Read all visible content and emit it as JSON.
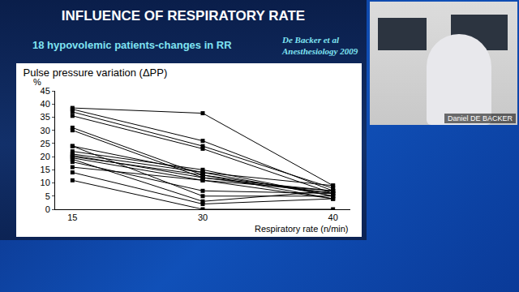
{
  "slide": {
    "title": "INFLUENCE OF RESPIRATORY RATE",
    "subtitle": "18 hypovolemic patients-changes in RR",
    "reference": [
      "De Backer et al",
      "Anesthesiology 2009"
    ]
  },
  "video": {
    "name": "Daniel DE BACKER"
  },
  "chart_data": {
    "type": "line",
    "title": "Pulse pressure variation (ΔPP)",
    "ylabel": "%",
    "xlabel": "Respiratory rate (n/min)",
    "categories": [
      "15",
      "30",
      "40"
    ],
    "color": "#000000",
    "marker": "square",
    "ylim": [
      0,
      45
    ],
    "yticks": [
      0,
      5,
      10,
      15,
      20,
      25,
      30,
      35,
      40,
      45
    ],
    "grid": false,
    "series": [
      {
        "values": [
          38.5,
          36.5,
          9
        ]
      },
      {
        "values": [
          38,
          26,
          7
        ]
      },
      {
        "values": [
          37,
          24,
          8
        ]
      },
      {
        "values": [
          35.5,
          23,
          6
        ]
      },
      {
        "values": [
          31,
          13,
          6
        ]
      },
      {
        "values": [
          30,
          12,
          7
        ]
      },
      {
        "values": [
          24,
          5,
          5
        ]
      },
      {
        "values": [
          24,
          14,
          5
        ]
      },
      {
        "values": [
          22,
          15,
          5
        ]
      },
      {
        "values": [
          21,
          14,
          9
        ]
      },
      {
        "values": [
          20.5,
          12,
          6
        ]
      },
      {
        "values": [
          20,
          13,
          4
        ]
      },
      {
        "values": [
          19.5,
          11,
          7
        ]
      },
      {
        "values": [
          19,
          3,
          7
        ]
      },
      {
        "values": [
          18,
          7,
          6
        ]
      },
      {
        "values": [
          16,
          11,
          4
        ]
      },
      {
        "values": [
          14,
          2,
          4
        ]
      },
      {
        "values": [
          11,
          0,
          0
        ]
      }
    ]
  }
}
